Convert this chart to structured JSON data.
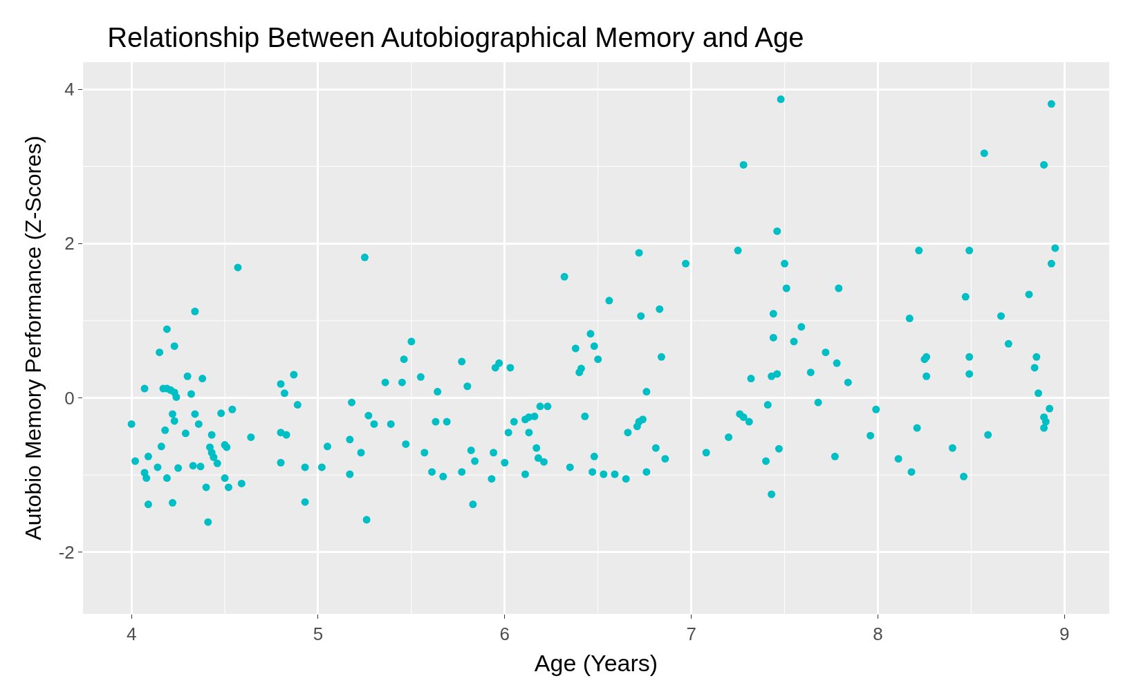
{
  "chart_data": {
    "type": "scatter",
    "title": "Relationship Between Autobiographical Memory and Age",
    "xlabel": "Age (Years)",
    "ylabel": "Autobio Memory Performance (Z-Scores)",
    "x": [
      4.0,
      4.02,
      4.07,
      4.07,
      4.08,
      4.09,
      4.09,
      4.14,
      4.15,
      4.16,
      4.17,
      4.18,
      4.19,
      4.19,
      4.19,
      4.21,
      4.22,
      4.23,
      4.22,
      4.23,
      4.23,
      4.25,
      4.24,
      4.29,
      4.3,
      4.32,
      4.33,
      4.34,
      4.34,
      4.36,
      4.37,
      4.38,
      4.4,
      4.41,
      4.42,
      4.43,
      4.43,
      4.44,
      4.46,
      4.48,
      4.5,
      4.5,
      4.51,
      4.52,
      4.54,
      4.57,
      4.59,
      4.64,
      4.8,
      4.8,
      4.8,
      4.82,
      4.83,
      4.87,
      4.89,
      4.93,
      4.93,
      5.02,
      5.05,
      5.17,
      5.17,
      5.18,
      5.23,
      5.25,
      5.26,
      5.27,
      5.3,
      5.36,
      5.39,
      5.45,
      5.46,
      5.47,
      5.5,
      5.55,
      5.57,
      5.61,
      5.63,
      5.64,
      5.67,
      5.69,
      5.77,
      5.77,
      5.8,
      5.82,
      5.83,
      5.84,
      5.93,
      5.94,
      5.95,
      5.97,
      6.0,
      6.02,
      6.03,
      6.05,
      6.11,
      6.11,
      6.13,
      6.13,
      6.16,
      6.17,
      6.18,
      6.19,
      6.21,
      6.23,
      6.32,
      6.35,
      6.38,
      6.4,
      6.41,
      6.43,
      6.46,
      6.47,
      6.48,
      6.48,
      6.5,
      6.53,
      6.56,
      6.59,
      6.65,
      6.66,
      6.71,
      6.72,
      6.73,
      6.72,
      6.74,
      6.76,
      6.76,
      6.81,
      6.83,
      6.84,
      6.86,
      6.97,
      7.08,
      7.2,
      7.25,
      7.26,
      7.28,
      7.28,
      7.31,
      7.32,
      7.4,
      7.41,
      7.43,
      7.43,
      7.44,
      7.44,
      7.46,
      7.46,
      7.47,
      7.48,
      7.5,
      7.51,
      7.55,
      7.59,
      7.64,
      7.68,
      7.72,
      7.77,
      7.78,
      7.79,
      7.84,
      7.96,
      7.99,
      8.11,
      8.17,
      8.18,
      8.21,
      8.22,
      8.25,
      8.26,
      8.26,
      8.4,
      8.46,
      8.47,
      8.49,
      8.49,
      8.49,
      8.57,
      8.59,
      8.66,
      8.7,
      8.81,
      8.84,
      8.85,
      8.86,
      8.89,
      8.89,
      8.89,
      8.9,
      8.92,
      8.93,
      8.93,
      8.95
    ],
    "values": [
      -0.34,
      -0.82,
      0.12,
      -0.97,
      -1.04,
      -1.38,
      -0.76,
      -0.9,
      0.59,
      -0.63,
      0.12,
      -0.42,
      0.89,
      0.12,
      -1.04,
      0.1,
      -0.21,
      0.07,
      -1.36,
      0.67,
      -0.3,
      -0.91,
      0.01,
      -0.46,
      0.28,
      0.05,
      -0.88,
      1.12,
      -0.21,
      -0.34,
      -0.89,
      0.25,
      -1.16,
      -1.61,
      -0.64,
      -0.48,
      -0.71,
      -0.77,
      -0.85,
      -0.2,
      -1.04,
      -0.61,
      -0.64,
      -1.16,
      -0.15,
      1.69,
      -1.11,
      -0.51,
      0.18,
      -0.45,
      -0.84,
      0.06,
      -0.48,
      0.3,
      -0.09,
      -0.9,
      -1.35,
      -0.9,
      -0.63,
      -0.54,
      -0.99,
      -0.06,
      -0.71,
      1.82,
      -1.58,
      -0.23,
      -0.34,
      0.2,
      -0.34,
      0.2,
      0.5,
      -0.6,
      0.73,
      0.27,
      -0.71,
      -0.96,
      -0.31,
      0.08,
      -1.02,
      -0.31,
      0.47,
      -0.96,
      0.15,
      -0.68,
      -1.38,
      -0.82,
      -1.05,
      -0.71,
      0.39,
      0.45,
      -0.84,
      -0.45,
      0.39,
      -0.31,
      -0.28,
      -0.99,
      -0.45,
      -0.25,
      -0.24,
      -0.65,
      -0.78,
      -0.11,
      -0.83,
      -0.11,
      1.57,
      -0.9,
      0.64,
      0.33,
      0.38,
      -0.24,
      0.83,
      -0.96,
      0.67,
      -0.76,
      0.5,
      -0.99,
      1.26,
      -0.99,
      -1.05,
      -0.45,
      -0.37,
      1.88,
      1.06,
      -0.31,
      -0.28,
      0.08,
      -0.96,
      -0.65,
      1.15,
      0.53,
      -0.79,
      1.74,
      -0.71,
      -0.51,
      1.91,
      -0.21,
      3.02,
      -0.25,
      -0.31,
      0.25,
      -0.82,
      -0.09,
      -1.25,
      0.28,
      1.09,
      0.78,
      0.31,
      2.16,
      -0.66,
      3.87,
      1.74,
      1.42,
      0.73,
      0.92,
      0.33,
      -0.06,
      0.59,
      -0.76,
      0.45,
      1.42,
      0.2,
      -0.49,
      -0.15,
      -0.79,
      1.03,
      -0.96,
      -0.39,
      1.91,
      0.5,
      0.53,
      0.28,
      -0.65,
      -1.02,
      1.31,
      1.91,
      0.53,
      0.31,
      3.17,
      -0.48,
      1.06,
      0.7,
      1.34,
      0.39,
      0.53,
      0.06,
      -0.25,
      -0.39,
      3.02,
      -0.31,
      -0.14,
      1.74,
      3.81,
      1.94
    ],
    "color": "#00bfc4",
    "marker": "circle",
    "xlim": [
      3.74,
      9.24
    ],
    "ylim": [
      -2.8,
      4.35
    ],
    "xticks": [
      4,
      5,
      6,
      7,
      8,
      9
    ],
    "yticks": [
      -2,
      0,
      2,
      4
    ],
    "grid": true,
    "legend": false
  }
}
